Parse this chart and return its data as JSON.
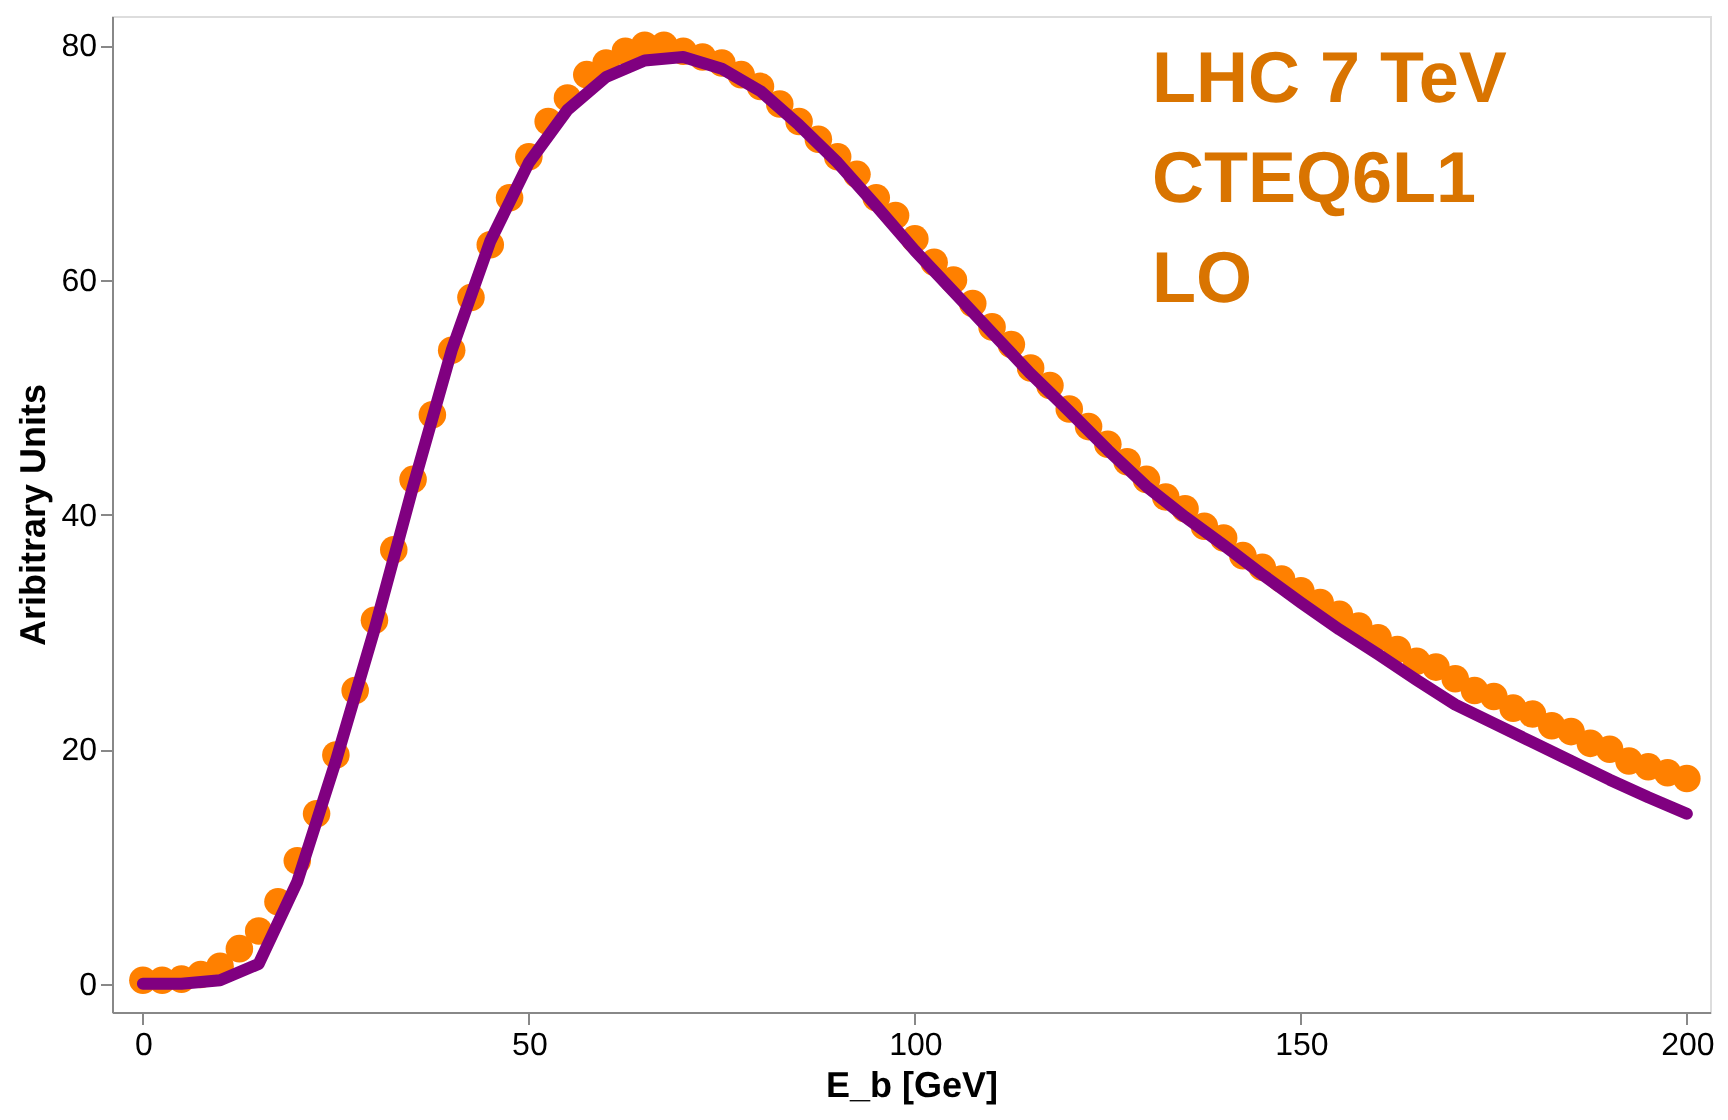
{
  "chart_data": {
    "type": "scatter",
    "xlabel": "E_b [GeV]",
    "ylabel": "Aribitrary Units",
    "xlim": [
      -4,
      203
    ],
    "ylim": [
      -2.4,
      82.5
    ],
    "xticks": [
      0,
      50,
      100,
      150,
      200
    ],
    "yticks": [
      0,
      20,
      40,
      60,
      80
    ],
    "grid": false,
    "marker": "circle",
    "annotations": [
      "LHC 7 TeV",
      "CTEQ6L1",
      "LO"
    ],
    "series": [
      {
        "type": "scatter",
        "color": "#ff8000",
        "x": [
          0,
          2.5,
          5,
          7.5,
          10,
          12.5,
          15,
          17.5,
          20,
          22.5,
          25,
          27.5,
          30,
          32.5,
          35,
          37.5,
          40,
          42.5,
          45,
          47.5,
          50,
          52.5,
          55,
          57.5,
          60,
          62.5,
          65,
          67.5,
          70,
          72.5,
          75,
          77.5,
          80,
          82.5,
          85,
          87.5,
          90,
          92.5,
          95,
          97.5,
          100,
          102.5,
          105,
          107.5,
          110,
          112.5,
          115,
          117.5,
          120,
          122.5,
          125,
          127.5,
          130,
          132.5,
          135,
          137.5,
          140,
          142.5,
          145,
          147.5,
          150,
          152.5,
          155,
          157.5,
          160,
          162.5,
          165,
          167.5,
          170,
          172.5,
          175,
          177.5,
          180,
          182.5,
          185,
          187.5,
          190,
          192.5,
          195,
          197.5,
          200
        ],
        "values": [
          0.3,
          0.3,
          0.4,
          0.8,
          1.5,
          3,
          4.5,
          7,
          10.5,
          14.5,
          19.5,
          25,
          31,
          37,
          43,
          48.5,
          54,
          58.5,
          63,
          67,
          70.5,
          73.5,
          75.5,
          77.5,
          78.5,
          79.5,
          80,
          80,
          79.5,
          79,
          78.5,
          77.5,
          76.5,
          75,
          73.5,
          72,
          70.5,
          69,
          67,
          65.5,
          63.5,
          61.5,
          60,
          58,
          56,
          54.5,
          52.5,
          51,
          49,
          47.5,
          46,
          44.5,
          43,
          41.5,
          40.5,
          39,
          38,
          36.5,
          35.5,
          34.5,
          33.5,
          32.5,
          31.5,
          30.5,
          29.5,
          28.5,
          27.5,
          27,
          26,
          25,
          24.5,
          23.5,
          23,
          22,
          21.5,
          20.5,
          20,
          19,
          18.5,
          18,
          17.5
        ]
      },
      {
        "type": "line",
        "color": "#800080",
        "marker": "none",
        "x": [
          0,
          5,
          10,
          15,
          20,
          25,
          30,
          35,
          40,
          45,
          50,
          55,
          60,
          65,
          70,
          75,
          80,
          85,
          90,
          95,
          100,
          105,
          110,
          115,
          120,
          125,
          130,
          135,
          140,
          145,
          150,
          155,
          160,
          165,
          170,
          175,
          180,
          185,
          190,
          195,
          200
        ],
        "values": [
          0,
          0,
          0.3,
          1.7,
          8.7,
          19,
          30.2,
          42.4,
          54,
          63.3,
          70,
          74.5,
          77.3,
          78.7,
          79,
          78,
          76.1,
          73.2,
          70,
          66.3,
          62.5,
          59,
          55.5,
          52,
          48.8,
          45.5,
          42.4,
          39.8,
          37.4,
          34.9,
          32.5,
          30.2,
          28.1,
          25.9,
          23.8,
          22.2,
          20.6,
          19,
          17.4,
          15.9,
          14.5
        ]
      }
    ]
  }
}
